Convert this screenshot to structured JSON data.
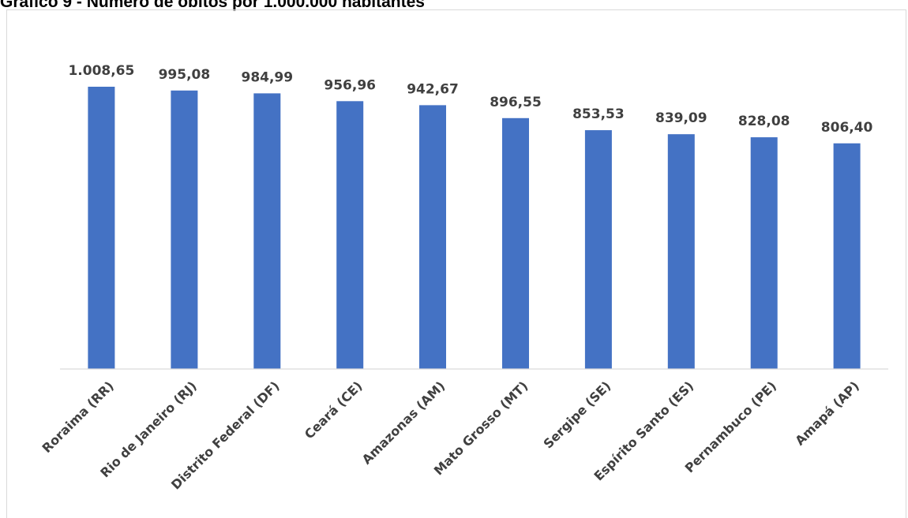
{
  "title": "Gráfico 9 - Número de óbitos por 1.000.000 habitantes",
  "chart_data": {
    "type": "bar",
    "title": "Gráfico 9 - Número de óbitos por 1.000.000 habitantes",
    "categories": [
      "Roraima (RR)",
      "Rio de Janeiro (RJ)",
      "Distrito Federal (DF)",
      "Ceará (CE)",
      "Amazonas (AM)",
      "Mato Grosso (MT)",
      "Sergipe (SE)",
      "Espírito Santo (ES)",
      "Pernambuco (PE)",
      "Amapá (AP)"
    ],
    "values": [
      1008.65,
      995.08,
      984.99,
      956.96,
      942.67,
      896.55,
      853.53,
      839.09,
      828.08,
      806.4
    ],
    "value_labels": [
      "1.008,65",
      "995,08",
      "984,99",
      "956,96",
      "942,67",
      "896,55",
      "853,53",
      "839,09",
      "828,08",
      "806,40"
    ],
    "xlabel": "",
    "ylabel": "",
    "ylim": [
      0,
      1008.65
    ],
    "grid": false,
    "legend": "none",
    "bar_color": "#4472C4",
    "axis_color": "#d9d9d9",
    "label_color": "#404040"
  }
}
